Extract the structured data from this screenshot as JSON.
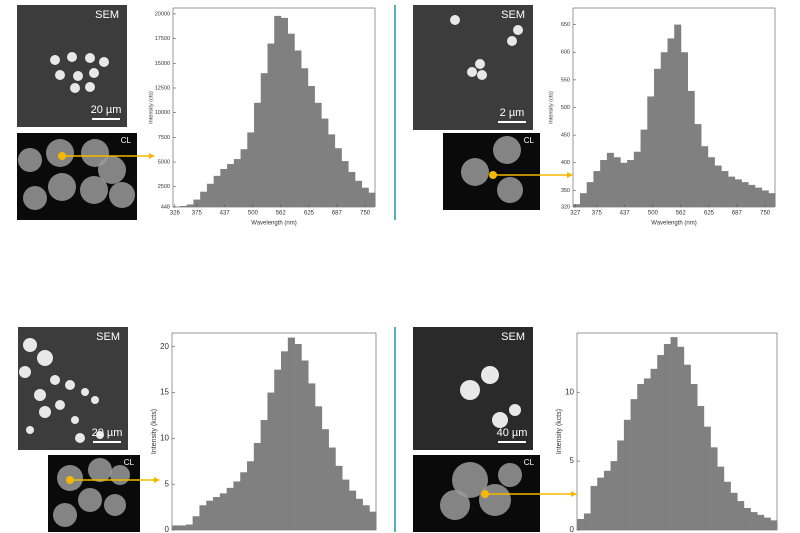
{
  "images": [
    {
      "sem_label": "SEM",
      "scale_bar": "20 µm",
      "cl_label": "CL"
    },
    {
      "sem_label": "SEM",
      "scale_bar": "2 µm",
      "cl_label": "CL"
    },
    {
      "sem_label": "SEM",
      "scale_bar": "20 µm",
      "cl_label": "CL"
    },
    {
      "sem_label": "SEM",
      "scale_bar": "40 µm",
      "cl_label": "CL"
    }
  ],
  "chart_data": [
    {
      "type": "bar",
      "color": "#808080",
      "xlabel": "Wavelength (nm)",
      "ylabel": "Intensity (cts)",
      "x": [
        330,
        345,
        360,
        375,
        390,
        405,
        420,
        435,
        450,
        465,
        480,
        495,
        510,
        525,
        540,
        555,
        570,
        585,
        600,
        615,
        630,
        645,
        660,
        675,
        690,
        705,
        720,
        735,
        750,
        765
      ],
      "values": [
        500,
        550,
        700,
        1200,
        2000,
        2800,
        3600,
        4300,
        4800,
        5300,
        6300,
        8000,
        11000,
        14000,
        17000,
        19800,
        19600,
        18000,
        16300,
        14500,
        12700,
        11000,
        9400,
        7800,
        6400,
        5100,
        4000,
        3100,
        2400,
        1900
      ],
      "xlim": [
        322,
        772
      ],
      "xticks": [
        326,
        375,
        437,
        500,
        562,
        625,
        687,
        750
      ],
      "ylim": [
        448,
        20600
      ],
      "yticks": [
        448,
        2500,
        5000,
        7500,
        10000,
        12500,
        15000,
        17500,
        20000
      ]
    },
    {
      "type": "bar",
      "color": "#808080",
      "xlabel": "Wavelength (nm)",
      "ylabel": "Intensity (cts)",
      "x": [
        330,
        345,
        360,
        375,
        390,
        405,
        420,
        435,
        450,
        465,
        480,
        495,
        510,
        525,
        540,
        555,
        570,
        585,
        600,
        615,
        630,
        645,
        660,
        675,
        690,
        705,
        720,
        735,
        750,
        765
      ],
      "values": [
        325,
        345,
        365,
        385,
        405,
        418,
        410,
        400,
        405,
        420,
        460,
        520,
        570,
        600,
        625,
        650,
        600,
        530,
        470,
        430,
        410,
        395,
        385,
        375,
        370,
        365,
        360,
        355,
        350,
        345
      ],
      "xlim": [
        322,
        772
      ],
      "xticks": [
        327,
        375,
        437,
        500,
        562,
        625,
        687,
        750
      ],
      "ylim": [
        320,
        680
      ],
      "yticks": [
        320,
        350,
        400,
        450,
        500,
        550,
        600,
        650
      ]
    },
    {
      "type": "bar",
      "color": "#808080",
      "ylabel": "Intensity (kcts)",
      "x": [
        330,
        345,
        360,
        375,
        390,
        405,
        420,
        435,
        450,
        465,
        480,
        495,
        510,
        525,
        540,
        555,
        570,
        585,
        600,
        615,
        630,
        645,
        660,
        675,
        690,
        705,
        720,
        735,
        750,
        765
      ],
      "values": [
        0.5,
        0.5,
        0.6,
        1.5,
        2.7,
        3.2,
        3.6,
        4.0,
        4.6,
        5.3,
        6.3,
        7.5,
        9.5,
        12,
        15,
        17.5,
        19.5,
        21,
        20.3,
        18.5,
        16,
        13.5,
        11,
        9,
        7,
        5.5,
        4.3,
        3.4,
        2.7,
        2.0
      ],
      "xlim": [
        322,
        772
      ],
      "ylim": [
        0,
        21.5
      ],
      "yticks": [
        0,
        5,
        10,
        15,
        20
      ]
    },
    {
      "type": "bar",
      "color": "#808080",
      "ylabel": "Intensity (kcts)",
      "x": [
        330,
        345,
        360,
        375,
        390,
        405,
        420,
        435,
        450,
        465,
        480,
        495,
        510,
        525,
        540,
        555,
        570,
        585,
        600,
        615,
        630,
        645,
        660,
        675,
        690,
        705,
        720,
        735,
        750,
        765
      ],
      "values": [
        0.8,
        1.2,
        3.2,
        3.8,
        4.3,
        5.0,
        6.5,
        8.0,
        9.5,
        10.6,
        11.0,
        11.7,
        12.7,
        13.5,
        14.0,
        13.3,
        12.0,
        10.6,
        9.0,
        7.5,
        6.0,
        4.6,
        3.5,
        2.7,
        2.1,
        1.6,
        1.3,
        1.1,
        0.9,
        0.7
      ],
      "xlim": [
        322,
        772
      ],
      "ylim": [
        0,
        14.3
      ],
      "yticks": [
        0,
        5,
        10
      ]
    }
  ]
}
